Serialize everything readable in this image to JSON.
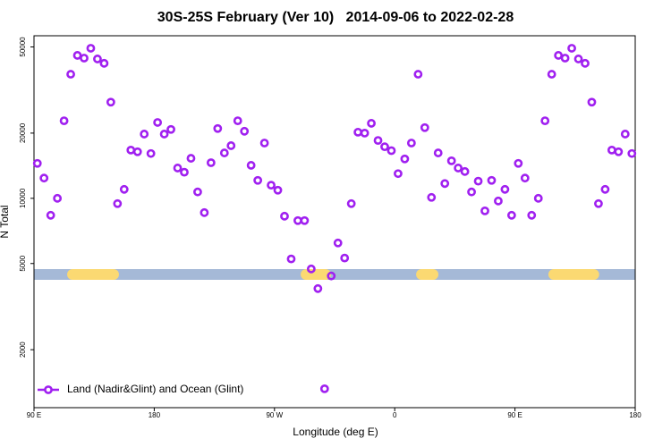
{
  "chart_data": {
    "type": "scatter",
    "title": "30S-25S February (Ver 10)   2014-09-06 to 2022-02-28",
    "x_label": "Longitude (deg E)",
    "y_label": "N Total",
    "log_y": true,
    "legend_position": "bottom-left",
    "xlim": [
      90,
      540
    ],
    "ylim": [
      1080,
      56300
    ],
    "xticks": [
      {
        "value": 90,
        "label": "90 E"
      },
      {
        "value": 180,
        "label": "180"
      },
      {
        "value": 270,
        "label": "90 W"
      },
      {
        "value": 360,
        "label": "0"
      },
      {
        "value": 450,
        "label": "90 E"
      },
      {
        "value": 540,
        "label": "180"
      }
    ],
    "yticks": [
      2000,
      5000,
      10000,
      20000,
      50000
    ],
    "band_color": "#a5b9d7",
    "land_color": "#fbd972",
    "land_spans": [
      [
        114.8,
        153.6
      ],
      [
        289.6,
        312.3
      ],
      [
        376,
        392.7
      ],
      [
        475,
        513
      ]
    ],
    "series": [
      {
        "name": "Land (Nadir&Glint) and Ocean (Glint)",
        "color": "#a020f0",
        "x": [
          92.5,
          97.5,
          102.5,
          107.5,
          112.5,
          117.5,
          122.5,
          127.5,
          132.5,
          137.5,
          142.5,
          147.5,
          152.5,
          157.5,
          162.5,
          167.5,
          172.5,
          177.5,
          182.5,
          187.5,
          192.5,
          197.5,
          202.5,
          207.5,
          212.5,
          217.5,
          222.5,
          227.5,
          232.5,
          237.5,
          242.5,
          247.5,
          252.5,
          257.5,
          262.5,
          267.5,
          272.5,
          277.5,
          282.5,
          287.5,
          292.5,
          297.5,
          302.5,
          307.5,
          312.5,
          317.5,
          322.5,
          327.5,
          332.5,
          337.5,
          342.5,
          347.5,
          352.5,
          357.5,
          362.5,
          367.5,
          372.5,
          377.5,
          382.5,
          387.5,
          392.5,
          397.5,
          402.5,
          407.5,
          412.5,
          417.5,
          422.5,
          427.5,
          432.5,
          437.5,
          442.5,
          447.5,
          452.5,
          457.5,
          462.5,
          467.5,
          472.5,
          477.5,
          482.5,
          487.5,
          492.5,
          497.5,
          502.5,
          507.5,
          512.5,
          517.5,
          522.5,
          527.5,
          532.5,
          537.5
        ],
        "values": [
          14500,
          12400,
          8350,
          10000,
          22800,
          37400,
          45700,
          44400,
          49300,
          44000,
          42000,
          27800,
          9450,
          11000,
          16700,
          16400,
          19800,
          16100,
          22400,
          19800,
          20800,
          13800,
          13200,
          15300,
          10700,
          8590,
          14600,
          21000,
          16200,
          17500,
          22800,
          20400,
          14200,
          12100,
          18000,
          11500,
          10900,
          8270,
          5250,
          7890,
          7890,
          4720,
          3830,
          1320,
          4380,
          6220,
          5300,
          9450,
          20200,
          20000,
          22200,
          18500,
          17300,
          16600,
          13000,
          15200,
          18000,
          37400,
          21200,
          10100,
          16200,
          11700,
          14900,
          13800,
          13300,
          10700,
          12000,
          8750,
          12100,
          9720,
          11000,
          8350,
          14500,
          12400,
          8350,
          10000,
          22800,
          37400,
          45700,
          44400,
          49300,
          44000,
          42000,
          27800,
          9450,
          11000,
          16700,
          16400,
          19800,
          16100
        ]
      }
    ]
  }
}
